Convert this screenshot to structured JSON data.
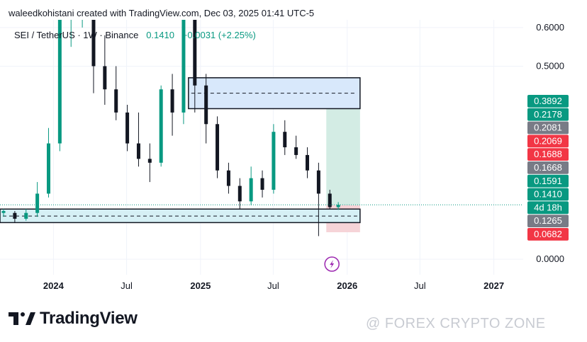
{
  "header": {
    "author_line": "waleedkohistani created with TradingView.com, Dec 03, 2025 01:41 UTC-5",
    "symbol": "SEI / TetherUS · 1W · Binance",
    "price": "0.1410",
    "change": "+0.0031 (+2.25%)"
  },
  "footer": {
    "brand": "TradingView",
    "watermark": "@ FOREX CRYPTO ZONE"
  },
  "colors": {
    "up": "#089981",
    "down": "#131722",
    "zone_fill": "#d8e8fb",
    "support_fill": "#d6f0f5",
    "target_fill": "#d3ece4",
    "stop_fill": "#f6d4d8",
    "price_line": "#089981",
    "label_green": "#089981",
    "label_gray": "#787b86",
    "label_red": "#f23645",
    "event_icon": "#9c27b0"
  },
  "icons": {
    "event": "lightning-icon",
    "logo": "tradingview-logo-icon"
  },
  "chart_data": {
    "type": "candlestick",
    "title": "SEI / TetherUS · 1W · Binance",
    "y_axis": {
      "ticks": [
        0.0,
        0.5,
        0.6
      ],
      "tick_labels": [
        "0.0000",
        "0.5000",
        "0.6000"
      ],
      "ylim": [
        -0.04,
        0.62
      ]
    },
    "x_axis": {
      "tick_labels": [
        "2024",
        "Jul",
        "2025",
        "Jul",
        "2026",
        "Jul",
        "2027"
      ],
      "tick_dates": [
        "2024-01-01",
        "2024-07-01",
        "2025-01-01",
        "2025-07-01",
        "2026-01-01",
        "2026-07-01",
        "2027-01-01"
      ],
      "xlim": [
        "2023-08-21",
        "2027-03-15"
      ]
    },
    "price_labels": [
      {
        "text": "0.3892",
        "value": 0.3892,
        "color": "green"
      },
      {
        "text": "0.2178",
        "value": 0.2178,
        "color": "green"
      },
      {
        "text": "0.2081",
        "value": 0.2081,
        "color": "gray"
      },
      {
        "text": "0.2069",
        "value": 0.2069,
        "color": "red"
      },
      {
        "text": "0.1688",
        "value": 0.1688,
        "color": "red"
      },
      {
        "text": "0.1668",
        "value": 0.1668,
        "color": "gray"
      },
      {
        "text": "0.1591",
        "value": 0.1591,
        "color": "green"
      },
      {
        "text": "0.1410",
        "value": 0.141,
        "color": "green"
      },
      {
        "text": "4d 18h",
        "value": 0.141,
        "color": "green"
      },
      {
        "text": "0.1265",
        "value": 0.1265,
        "color": "gray"
      },
      {
        "text": "0.0682",
        "value": 0.0682,
        "color": "red"
      }
    ],
    "current_price": 0.141,
    "zones": [
      {
        "kind": "resistance",
        "start": "2024-12-02",
        "end": "2026-02-02",
        "top": 0.47,
        "bottom": 0.39,
        "mid": 0.43
      },
      {
        "kind": "support",
        "start": "2023-08-21",
        "end": "2026-02-02",
        "top": 0.13,
        "bottom": 0.095,
        "mid": 0.112
      }
    ],
    "position": {
      "start": "2025-11-10",
      "end": "2026-02-02",
      "entry": 0.14,
      "target": 0.39,
      "stop": 0.07
    },
    "event_marker_date": "2025-11-24",
    "candles": [
      {
        "t": "2023-08-21",
        "o": 0.12,
        "h": 0.13,
        "l": 0.11,
        "c": 0.125
      },
      {
        "t": "2023-09-18",
        "o": 0.12,
        "h": 0.125,
        "l": 0.095,
        "c": 0.105
      },
      {
        "t": "2023-10-16",
        "o": 0.105,
        "h": 0.13,
        "l": 0.1,
        "c": 0.12
      },
      {
        "t": "2023-11-13",
        "o": 0.12,
        "h": 0.2,
        "l": 0.11,
        "c": 0.17
      },
      {
        "t": "2023-12-11",
        "o": 0.17,
        "h": 0.34,
        "l": 0.16,
        "c": 0.3
      },
      {
        "t": "2024-01-08",
        "o": 0.3,
        "h": 0.7,
        "l": 0.28,
        "c": 0.62
      },
      {
        "t": "2024-02-05",
        "o": 0.62,
        "h": 0.78,
        "l": 0.55,
        "c": 0.7
      },
      {
        "t": "2024-03-04",
        "o": 0.7,
        "h": 0.88,
        "l": 0.6,
        "c": 0.72
      },
      {
        "t": "2024-04-01",
        "o": 0.72,
        "h": 0.74,
        "l": 0.43,
        "c": 0.5
      },
      {
        "t": "2024-04-29",
        "o": 0.5,
        "h": 0.58,
        "l": 0.4,
        "c": 0.44
      },
      {
        "t": "2024-05-27",
        "o": 0.44,
        "h": 0.5,
        "l": 0.36,
        "c": 0.38
      },
      {
        "t": "2024-06-24",
        "o": 0.38,
        "h": 0.4,
        "l": 0.28,
        "c": 0.3
      },
      {
        "t": "2024-07-22",
        "o": 0.3,
        "h": 0.38,
        "l": 0.24,
        "c": 0.26
      },
      {
        "t": "2024-08-19",
        "o": 0.26,
        "h": 0.3,
        "l": 0.2,
        "c": 0.25
      },
      {
        "t": "2024-09-16",
        "o": 0.25,
        "h": 0.45,
        "l": 0.24,
        "c": 0.44
      },
      {
        "t": "2024-10-14",
        "o": 0.44,
        "h": 0.48,
        "l": 0.32,
        "c": 0.38
      },
      {
        "t": "2024-11-11",
        "o": 0.38,
        "h": 0.7,
        "l": 0.35,
        "c": 0.62
      },
      {
        "t": "2024-12-09",
        "o": 0.62,
        "h": 0.68,
        "l": 0.38,
        "c": 0.45
      },
      {
        "t": "2025-01-06",
        "o": 0.45,
        "h": 0.48,
        "l": 0.3,
        "c": 0.35
      },
      {
        "t": "2025-02-03",
        "o": 0.35,
        "h": 0.37,
        "l": 0.21,
        "c": 0.23
      },
      {
        "t": "2025-03-03",
        "o": 0.23,
        "h": 0.25,
        "l": 0.17,
        "c": 0.19
      },
      {
        "t": "2025-03-31",
        "o": 0.19,
        "h": 0.21,
        "l": 0.13,
        "c": 0.15
      },
      {
        "t": "2025-04-28",
        "o": 0.15,
        "h": 0.24,
        "l": 0.14,
        "c": 0.21
      },
      {
        "t": "2025-05-26",
        "o": 0.21,
        "h": 0.23,
        "l": 0.16,
        "c": 0.18
      },
      {
        "t": "2025-06-23",
        "o": 0.18,
        "h": 0.35,
        "l": 0.17,
        "c": 0.33
      },
      {
        "t": "2025-07-21",
        "o": 0.33,
        "h": 0.36,
        "l": 0.27,
        "c": 0.29
      },
      {
        "t": "2025-08-18",
        "o": 0.29,
        "h": 0.32,
        "l": 0.26,
        "c": 0.27
      },
      {
        "t": "2025-09-15",
        "o": 0.27,
        "h": 0.29,
        "l": 0.21,
        "c": 0.23
      },
      {
        "t": "2025-10-13",
        "o": 0.23,
        "h": 0.25,
        "l": 0.06,
        "c": 0.17
      },
      {
        "t": "2025-11-10",
        "o": 0.17,
        "h": 0.18,
        "l": 0.13,
        "c": 0.135
      },
      {
        "t": "2025-12-01",
        "o": 0.135,
        "h": 0.148,
        "l": 0.128,
        "c": 0.141
      }
    ]
  }
}
